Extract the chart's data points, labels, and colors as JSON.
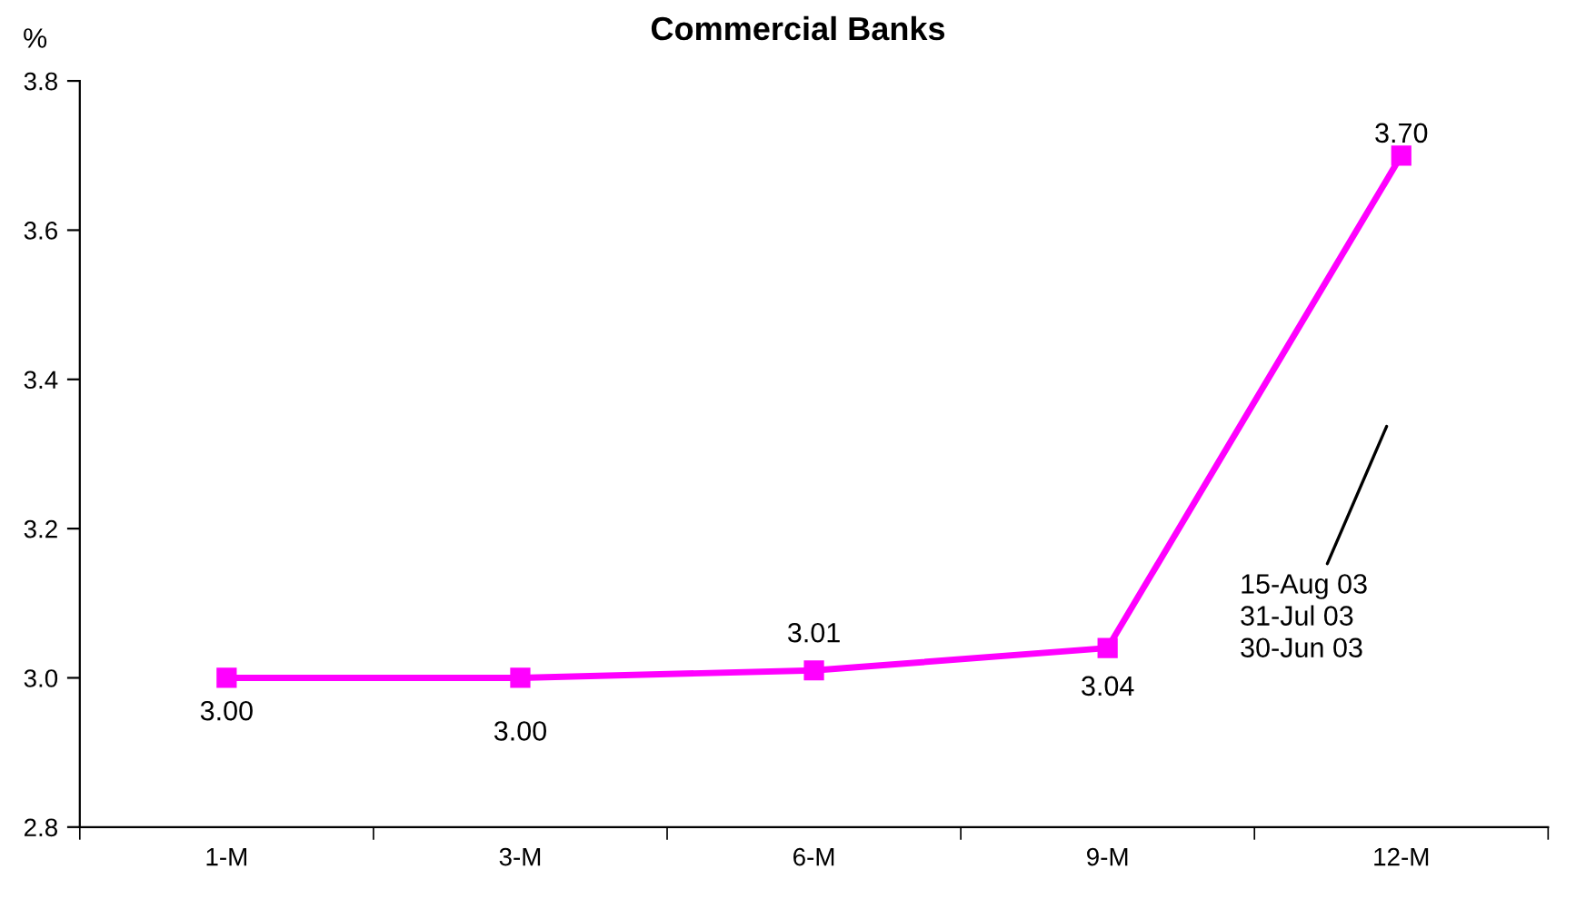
{
  "chart_data": {
    "type": "line",
    "title": "Commercial Banks",
    "ylabel": "%",
    "categories": [
      "1-M",
      "3-M",
      "6-M",
      "9-M",
      "12-M"
    ],
    "series": [
      {
        "color": "#ff00ff",
        "values": [
          3.0,
          3.0,
          3.01,
          3.04,
          3.7
        ],
        "value_labels": [
          "3.00",
          "3.00",
          "3.01",
          "3.04",
          "3.70"
        ]
      }
    ],
    "ylim": [
      2.8,
      3.8
    ],
    "yticks": [
      {
        "value": 2.8,
        "label": "2.8"
      },
      {
        "value": 3.0,
        "label": "3.0"
      },
      {
        "value": 3.2,
        "label": "3.2"
      },
      {
        "value": 3.4,
        "label": "3.4"
      },
      {
        "value": 3.6,
        "label": "3.6"
      },
      {
        "value": 3.8,
        "label": "3.8"
      }
    ],
    "annotations": [
      "15-Aug 03\n31-Jul 03\n30-Jun 03"
    ],
    "marker": "square",
    "line_style": "solid",
    "grid": false,
    "legend": false
  }
}
